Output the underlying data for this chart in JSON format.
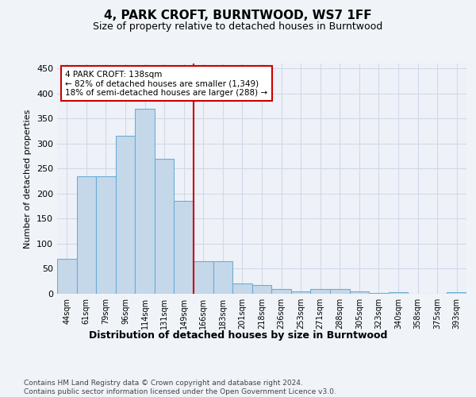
{
  "title": "4, PARK CROFT, BURNTWOOD, WS7 1FF",
  "subtitle": "Size of property relative to detached houses in Burntwood",
  "xlabel": "Distribution of detached houses by size in Burntwood",
  "ylabel": "Number of detached properties",
  "categories": [
    "44sqm",
    "61sqm",
    "79sqm",
    "96sqm",
    "114sqm",
    "131sqm",
    "149sqm",
    "166sqm",
    "183sqm",
    "201sqm",
    "218sqm",
    "236sqm",
    "253sqm",
    "271sqm",
    "288sqm",
    "305sqm",
    "323sqm",
    "340sqm",
    "358sqm",
    "375sqm",
    "393sqm"
  ],
  "values": [
    70,
    235,
    235,
    315,
    370,
    270,
    185,
    65,
    65,
    20,
    18,
    10,
    5,
    9,
    10,
    5,
    1,
    3,
    0,
    0,
    3
  ],
  "bar_color": "#c5d8ea",
  "bar_edge_color": "#6aaed6",
  "grid_color": "#d0d8e8",
  "red_line_x": 6.5,
  "red_line_color": "#cc0000",
  "annotation_line1": "4 PARK CROFT: 138sqm",
  "annotation_line2": "← 82% of detached houses are smaller (1,349)",
  "annotation_line3": "18% of semi-detached houses are larger (288) →",
  "annotation_box_color": "#ffffff",
  "annotation_box_edge_color": "#cc0000",
  "ylim": [
    0,
    460
  ],
  "yticks": [
    0,
    50,
    100,
    150,
    200,
    250,
    300,
    350,
    400,
    450
  ],
  "footer_text": "Contains HM Land Registry data © Crown copyright and database right 2024.\nContains public sector information licensed under the Open Government Licence v3.0.",
  "background_color": "#f0f4f8",
  "plot_bg_color": "#eef2f8"
}
